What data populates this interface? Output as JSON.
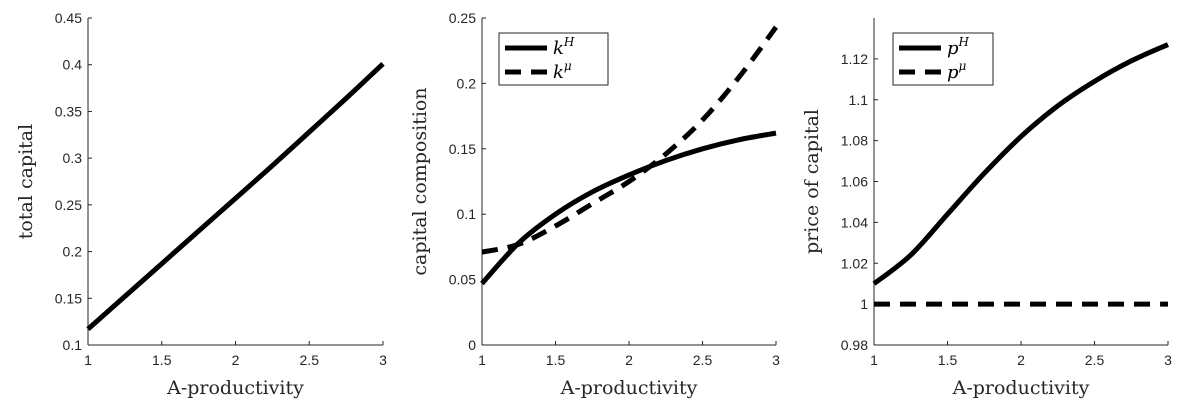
{
  "chart_data": [
    {
      "type": "line",
      "xlabel": "A-productivity",
      "ylabel": "total capital",
      "xlim": [
        1,
        3
      ],
      "ylim": [
        0.1,
        0.45
      ],
      "xticks": [
        "1",
        "1.5",
        "2",
        "2.5",
        "3"
      ],
      "yticks": [
        "0.1",
        "0.15",
        "0.2",
        "0.25",
        "0.3",
        "0.35",
        "0.4",
        "0.45"
      ],
      "x": [
        1,
        1.25,
        1.5,
        1.75,
        2,
        2.25,
        2.5,
        2.75,
        3
      ],
      "series": [
        {
          "values": [
            0.117,
            0.152,
            0.187,
            0.222,
            0.257,
            0.292,
            0.328,
            0.364,
            0.401
          ],
          "style": "solid"
        }
      ],
      "legend": null
    },
    {
      "type": "line",
      "xlabel": "A-productivity",
      "ylabel": "capital composition",
      "xlim": [
        1,
        3
      ],
      "ylim": [
        0,
        0.25
      ],
      "xticks": [
        "1",
        "1.5",
        "2",
        "2.5",
        "3"
      ],
      "yticks": [
        "0",
        "0.05",
        "0.1",
        "0.15",
        "0.2",
        "0.25"
      ],
      "x": [
        1,
        1.25,
        1.5,
        1.75,
        2,
        2.25,
        2.5,
        2.75,
        3
      ],
      "series": [
        {
          "name": "k^H",
          "legend_base": "k",
          "legend_sup": "H",
          "style": "solid",
          "values": [
            0.047,
            0.078,
            0.1,
            0.117,
            0.13,
            0.141,
            0.15,
            0.157,
            0.162
          ]
        },
        {
          "name": "k^μ",
          "legend_base": "k",
          "legend_sup": "μ",
          "style": "dashed",
          "values": [
            0.071,
            0.077,
            0.091,
            0.108,
            0.125,
            0.146,
            0.172,
            0.205,
            0.243
          ]
        }
      ],
      "legend": "top-left"
    },
    {
      "type": "line",
      "xlabel": "A-productivity",
      "ylabel": "price of capital",
      "xlim": [
        1,
        3
      ],
      "ylim": [
        0.98,
        1.14
      ],
      "xticks": [
        "1",
        "1.5",
        "2",
        "2.5",
        "3"
      ],
      "yticks": [
        "0.98",
        "1",
        "1.02",
        "1.04",
        "1.06",
        "1.08",
        "1.1",
        "1.12"
      ],
      "x": [
        1,
        1.25,
        1.5,
        1.75,
        2,
        2.25,
        2.5,
        2.75,
        3
      ],
      "series": [
        {
          "name": "p^H",
          "legend_base": "p",
          "legend_sup": "H",
          "style": "solid",
          "values": [
            1.01,
            1.024,
            1.044,
            1.064,
            1.082,
            1.097,
            1.109,
            1.119,
            1.127
          ]
        },
        {
          "name": "p^μ",
          "legend_base": "p",
          "legend_sup": "μ",
          "style": "dashed",
          "values": [
            1.0,
            1.0,
            1.0,
            1.0,
            1.0,
            1.0,
            1.0,
            1.0,
            1.0
          ]
        }
      ],
      "legend": "top-left"
    }
  ]
}
